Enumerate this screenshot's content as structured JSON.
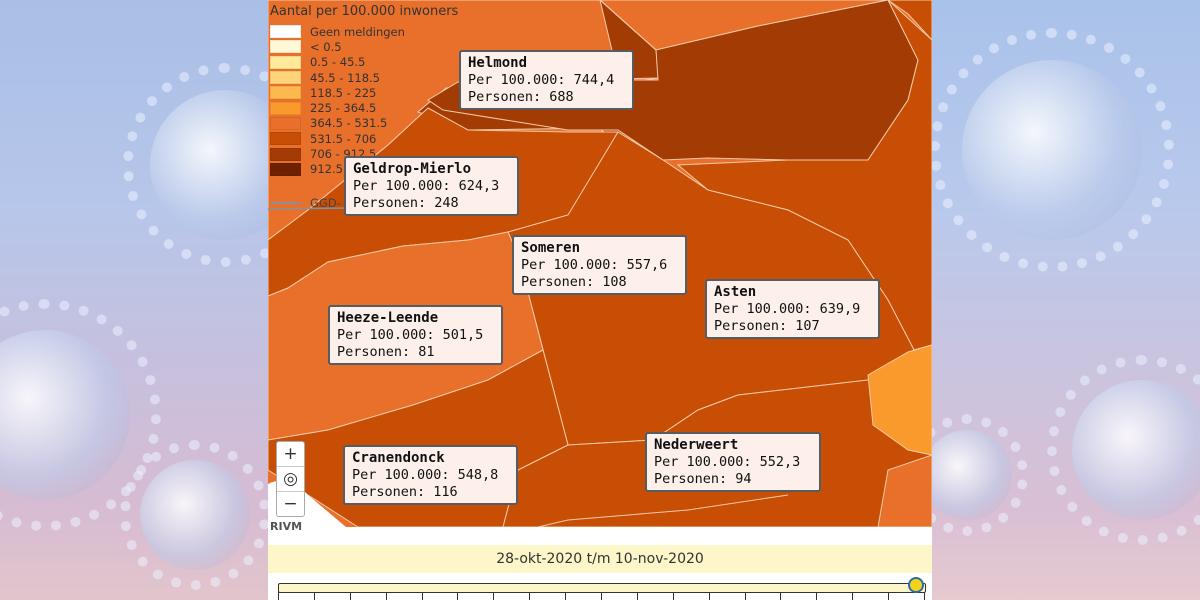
{
  "legend": {
    "title": "Aantal per 100.000 inwoners",
    "items": [
      {
        "label": "Geen meldingen",
        "color": "#ffffff"
      },
      {
        "label": "< 0.5",
        "color": "#fff7d6"
      },
      {
        "label": "0.5 - 45.5",
        "color": "#ffe99a"
      },
      {
        "label": "45.5 - 118.5",
        "color": "#fed37a"
      },
      {
        "label": "118.5 - 225",
        "color": "#fdb94e"
      },
      {
        "label": "225 - 364.5",
        "color": "#fb9a2c"
      },
      {
        "label": "364.5 - 531.5",
        "color": "#e8702a"
      },
      {
        "label": "531.5 - 706",
        "color": "#c94e05"
      },
      {
        "label": "706 - 912.5",
        "color": "#a33c04"
      },
      {
        "label": "912.5",
        "color": "#6e2202"
      }
    ],
    "boundary_label": "GGD-"
  },
  "popups": [
    {
      "name": "Helmond",
      "per100k": "Per 100.000: 744,4",
      "personen": "Personen: 688"
    },
    {
      "name": "Geldrop-Mierlo",
      "per100k": "Per 100.000: 624,3",
      "personen": "Personen: 248"
    },
    {
      "name": "Someren",
      "per100k": "Per 100.000: 557,6",
      "personen": "Personen: 108"
    },
    {
      "name": "Asten",
      "per100k": "Per 100.000: 639,9",
      "personen": "Personen: 107"
    },
    {
      "name": "Heeze-Leende",
      "per100k": "Per 100.000: 501,5",
      "personen": "Personen: 81"
    },
    {
      "name": "Cranendonck",
      "per100k": "Per 100.000: 548,8",
      "personen": "Personen: 116"
    },
    {
      "name": "Nederweert",
      "per100k": "Per 100.000: 552,3",
      "personen": "Personen: 94"
    }
  ],
  "controls": {
    "zoom_in": "+",
    "locate": "◎",
    "zoom_out": "−"
  },
  "attribution": "RIVM",
  "date_range": "28-okt-2020 t/m 10-nov-2020",
  "timeline": {
    "position": 1.0
  }
}
